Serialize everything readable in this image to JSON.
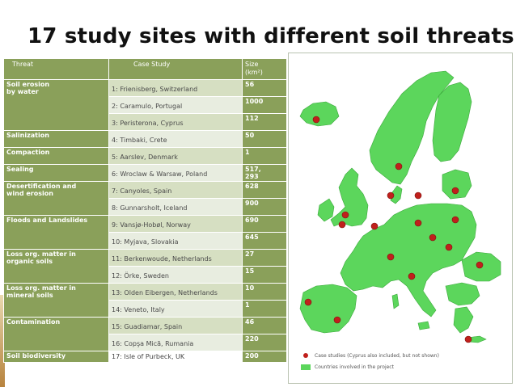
{
  "title": "17 study sites with different soil threats",
  "table": {
    "headers": {
      "threat": "Threat",
      "case_study": "Case Study",
      "size": "Size",
      "size_unit": "(km²)"
    },
    "rows": [
      {
        "threat": "Soil erosion",
        "threat2": "by water",
        "case": "1: Frienisberg, Switzerland",
        "size": "56"
      },
      {
        "threat": "",
        "threat2": "",
        "case": "2: Caramulo, Portugal",
        "size": "1000"
      },
      {
        "threat": "",
        "threat2": "",
        "case": "3: Peristerona, Cyprus",
        "size": "112"
      },
      {
        "threat": "Salinization",
        "threat2": "",
        "case": "4: Timbaki, Crete",
        "size": "50"
      },
      {
        "threat": "Compaction",
        "threat2": "",
        "case": "5: Aarslev, Denmark",
        "size": "1"
      },
      {
        "threat": "Sealing",
        "threat2": "",
        "case": "6: Wroclaw & Warsaw, Poland",
        "size": "517,",
        "size2": "293"
      },
      {
        "threat": "Desertification and",
        "threat2": "wind erosion",
        "case": "7: Canyoles, Spain",
        "size": "628"
      },
      {
        "threat": "",
        "threat2": "",
        "case": "8: Gunnarsholt, Iceland",
        "size": "900"
      },
      {
        "threat": "Floods and Landslides",
        "threat2": "",
        "case": "9: Vansjø-Hobøl, Norway",
        "size": "690"
      },
      {
        "threat": "",
        "threat2": "",
        "case": "10: Myjava, Slovakia",
        "size": "645"
      },
      {
        "threat": "Loss org. matter in",
        "threat2": "organic soils",
        "case": "11: Berkenwoude, Netherlands",
        "size": "27"
      },
      {
        "threat": "",
        "threat2": "",
        "case": "12: Örke, Sweden",
        "size": "15"
      },
      {
        "threat": "Loss org. matter in",
        "threat2": "mineral soils",
        "case": "13: Olden Eibergen, Netherlands",
        "size": "10"
      },
      {
        "threat": "",
        "threat2": "",
        "case": "14: Veneto, Italy",
        "size": "1"
      },
      {
        "threat": "Contamination",
        "threat2": "",
        "case": "15: Guadiamar, Spain",
        "size": "46"
      },
      {
        "threat": "",
        "threat2": "",
        "case": "16: Copşa Micã, Rumania",
        "size": "220"
      },
      {
        "threat": "Soil biodiversity",
        "threat2": "",
        "case": "17: Isle of Purbeck, UK",
        "size": "200"
      }
    ]
  },
  "map": {
    "land_color": "#5cd65c",
    "marker_color": "#c0201c",
    "legend": {
      "case_studies": "Case studies (Cyprus also included, but not shown)",
      "countries": "Countries involved in the project"
    }
  }
}
